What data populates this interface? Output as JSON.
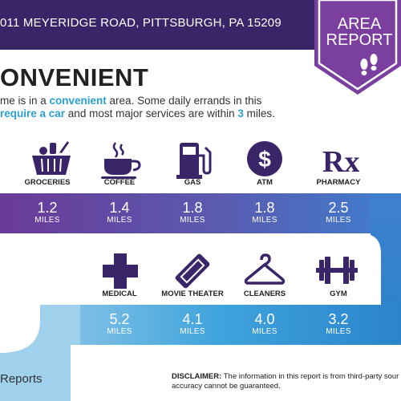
{
  "header": {
    "address": "011 MEYERIDGE ROAD, PITTSBURGH, PA 15209"
  },
  "badge": {
    "line1": "AREA",
    "line2": "REPORT"
  },
  "summary": {
    "title": "ONVENIENT",
    "line1_a": "me is in a ",
    "line1_hl": "convenient",
    "line1_b": " area. Some daily errands in this",
    "line2_hl1": "require a car",
    "line2_b": " and most major services are within ",
    "line2_hl2": "3",
    "line2_c": " miles."
  },
  "amenities_row1": [
    {
      "label": "GROCERIES",
      "value": "1.2",
      "unit": "MILES",
      "icon": "basket-icon"
    },
    {
      "label": "COFFEE",
      "value": "1.4",
      "unit": "MILES",
      "icon": "coffee-icon"
    },
    {
      "label": "GAS",
      "value": "1.8",
      "unit": "MILES",
      "icon": "gas-pump-icon"
    },
    {
      "label": "ATM",
      "value": "1.8",
      "unit": "MILES",
      "icon": "dollar-icon"
    },
    {
      "label": "PHARMACY",
      "value": "2.5",
      "unit": "MILES",
      "icon": "rx-icon"
    }
  ],
  "amenities_row2": [
    {
      "label": "MEDICAL",
      "value": "5.2",
      "unit": "MILES",
      "icon": "medical-cross-icon"
    },
    {
      "label": "MOVIE THEATER",
      "value": "4.1",
      "unit": "MILES",
      "icon": "ticket-icon"
    },
    {
      "label": "CLEANERS",
      "value": "4.0",
      "unit": "MILES",
      "icon": "hanger-icon"
    },
    {
      "label": "GYM",
      "value": "3.2",
      "unit": "MILES",
      "icon": "dumbbell-icon"
    }
  ],
  "icon_glyphs": {
    "rx": "Rx",
    "dollar": "$"
  },
  "footer": {
    "brand": "Reports",
    "disclaimer_label": "DISCLAIMER:",
    "disclaimer_text": " The information in this report is from third-party sour",
    "disclaimer_line2": "accuracy cannot be guaranteed."
  },
  "colors": {
    "header": "#3a2568",
    "badge": "#7b3fa0",
    "highlight": "#2ba0cf"
  }
}
